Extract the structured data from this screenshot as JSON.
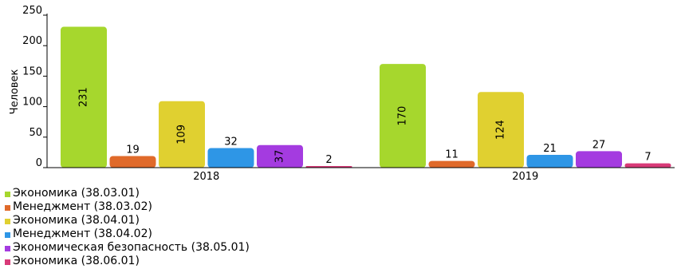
{
  "chart_data": {
    "type": "bar",
    "ylabel": "Человек",
    "ylim": [
      0,
      250
    ],
    "yticks": [
      0,
      50,
      100,
      150,
      200,
      250
    ],
    "categories": [
      "2018",
      "2019"
    ],
    "series": [
      {
        "name": "Экономика (38.03.01)",
        "color": "#a6d72d",
        "values": [
          231,
          170
        ]
      },
      {
        "name": "Менеджмент (38.03.02)",
        "color": "#e06a2a",
        "values": [
          19,
          11
        ]
      },
      {
        "name": "Экономика (38.04.01)",
        "color": "#e0d030",
        "values": [
          109,
          124
        ]
      },
      {
        "name": "Менеджмент (38.04.02)",
        "color": "#2e96e6",
        "values": [
          32,
          21
        ]
      },
      {
        "name": "Экономическая безопасность (38.05.01)",
        "color": "#a43be0",
        "values": [
          37,
          27
        ]
      },
      {
        "name": "Экономика (38.06.01)",
        "color": "#d83a78",
        "values": [
          2,
          7
        ]
      }
    ],
    "legend_position": "bottom-left",
    "grid": false
  }
}
